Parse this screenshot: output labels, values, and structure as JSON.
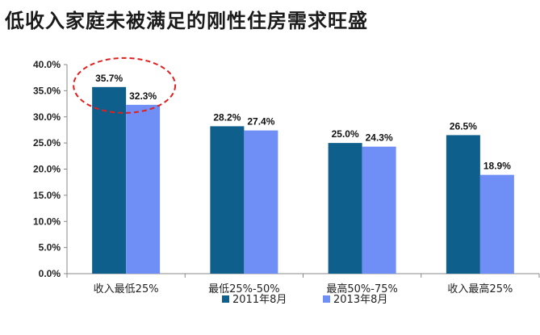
{
  "title": "低收入家庭未被满足的刚性住房需求旺盛",
  "chart_data": {
    "type": "bar",
    "categories": [
      "收入最低25%",
      "最低25%-50%",
      "最高50%-75%",
      "收入最高25%"
    ],
    "series": [
      {
        "name": "2011年8月",
        "color": "#0f5f8c",
        "values": [
          35.7,
          28.2,
          25.0,
          26.5
        ],
        "labels": [
          "35.7%",
          "28.2%",
          "25.0%",
          "26.5%"
        ]
      },
      {
        "name": "2013年8月",
        "color": "#6f8ff7",
        "values": [
          32.3,
          27.4,
          24.3,
          18.9
        ],
        "labels": [
          "32.3%",
          "27.4%",
          "24.3%",
          "18.9%"
        ]
      }
    ],
    "ylim": [
      0,
      40
    ],
    "yticks": [
      0,
      5,
      10,
      15,
      20,
      25,
      30,
      35,
      40
    ],
    "ytick_labels": [
      "0.0%",
      "5.0%",
      "10.0%",
      "15.0%",
      "20.0%",
      "25.0%",
      "30.0%",
      "35.0%",
      "40.0%"
    ],
    "legend_position": "bottom-center",
    "annotation": {
      "type": "dashed-ellipse",
      "color": "#e0201f",
      "target_category": "收入最低25%"
    }
  }
}
